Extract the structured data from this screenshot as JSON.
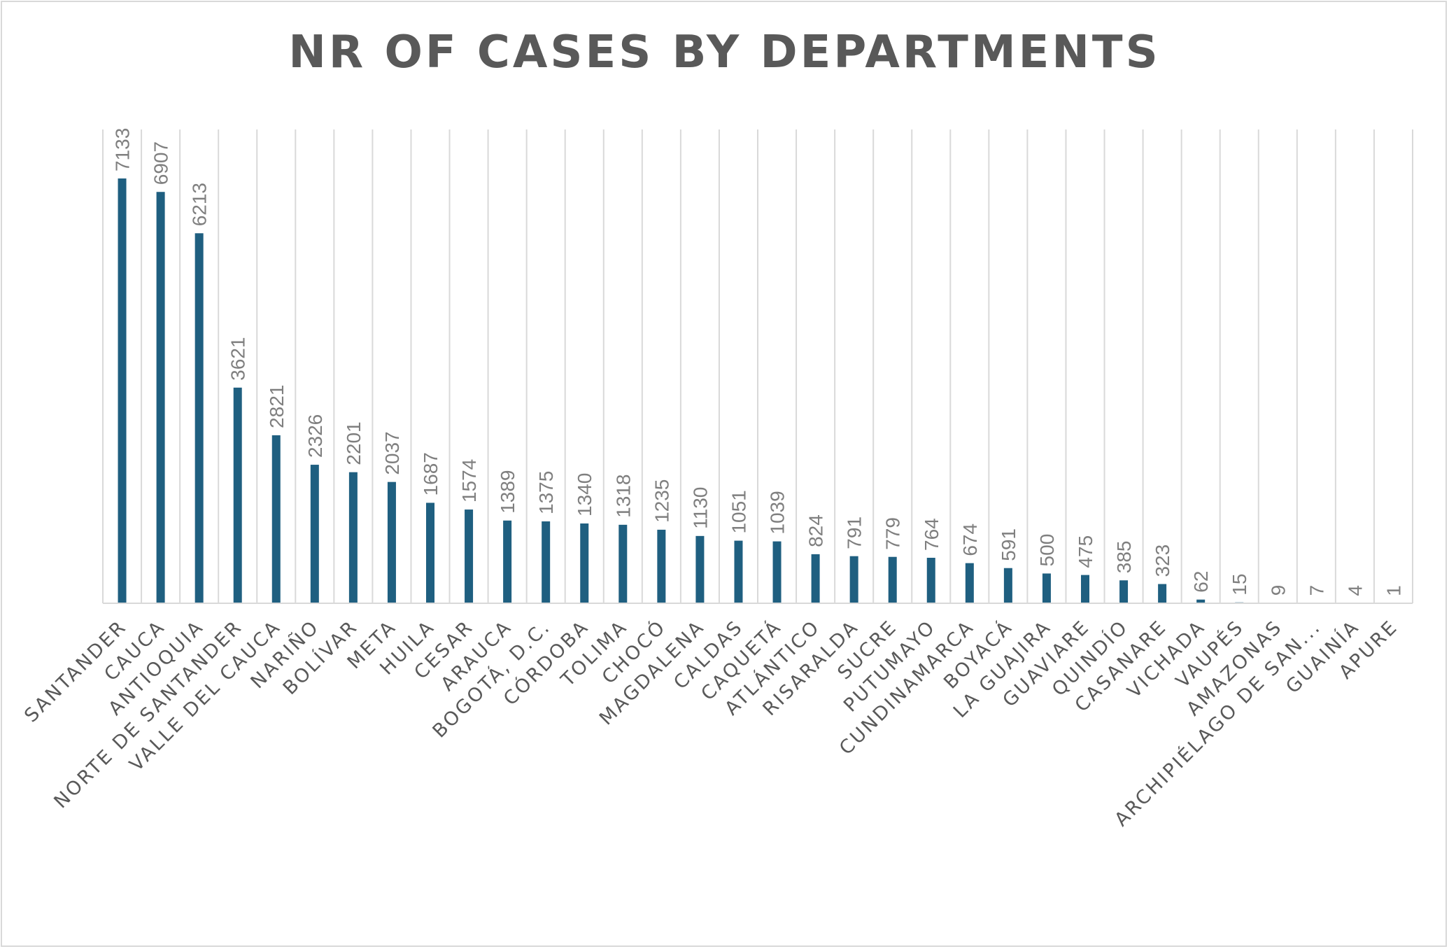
{
  "chart_data": {
    "type": "bar",
    "title": "NR OF CASES BY DEPARTMENTS",
    "xlabel": "",
    "ylabel": "",
    "ylim": [
      0,
      8000
    ],
    "grid": "vertical",
    "legend": "none",
    "bar_color": "#1f5f80",
    "categories": [
      "SANTANDER",
      "CAUCA",
      "ANTIOQUIA",
      "NORTE DE SANTANDER",
      "VALLE DEL CAUCA",
      "NARIÑO",
      "BOLÍVAR",
      "META",
      "HUILA",
      "CESAR",
      "ARAUCA",
      "BOGOTÁ, D.C.",
      "CÓRDOBA",
      "TOLIMA",
      "CHOCÓ",
      "MAGDALENA",
      "CALDAS",
      "CAQUETÁ",
      "ATLÁNTICO",
      "RISARALDA",
      "SUCRE",
      "PUTUMAYO",
      "CUNDINAMARCA",
      "BOYACÁ",
      "LA GUAJIRA",
      "GUAVIARE",
      "QUINDÍO",
      "CASANARE",
      "VICHADA",
      "VAUPÉS",
      "AMAZONAS",
      "ARCHIPIÉLAGO DE SAN...",
      "GUAINÍA",
      "APURE"
    ],
    "values": [
      7133,
      6907,
      6213,
      3621,
      2821,
      2326,
      2201,
      2037,
      1687,
      1574,
      1389,
      1375,
      1340,
      1318,
      1235,
      1130,
      1051,
      1039,
      824,
      791,
      779,
      764,
      674,
      591,
      500,
      475,
      385,
      323,
      62,
      15,
      9,
      7,
      4,
      1
    ]
  }
}
